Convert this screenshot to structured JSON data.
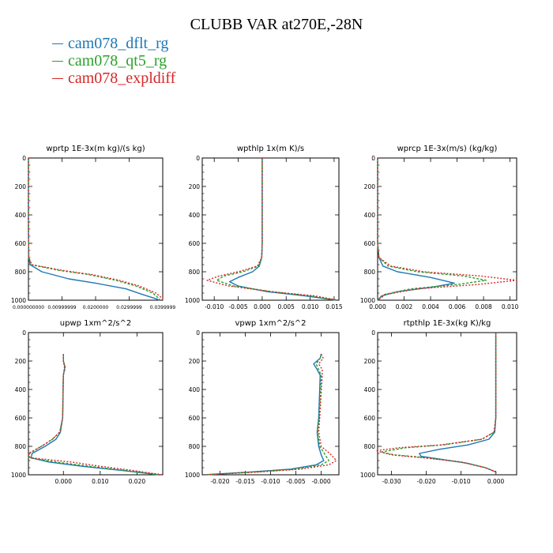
{
  "title": "CLUBB VAR at270E,-28N",
  "legend": [
    {
      "label": "cam078_dflt_rg",
      "color": "#1f77b4"
    },
    {
      "label": "cam078_qt5_rg",
      "color": "#2ca02c"
    },
    {
      "label": "cam078_expldiff",
      "color": "#d62728"
    }
  ],
  "chart_data": [
    {
      "type": "line",
      "title": "wprtp  1E-3x(m kg)/(s kg)",
      "xlim": [
        0,
        0.04
      ],
      "ylim": [
        1000,
        0
      ],
      "xticks": [
        0,
        0.01,
        0.02,
        0.03,
        0.04
      ],
      "xtick_labels": [
        "0.000000000",
        "0.00999999",
        "0.0200000",
        "0.0299999",
        "0.0399999"
      ],
      "yticks": [
        0,
        200,
        400,
        600,
        800,
        1000
      ],
      "series": [
        {
          "name": "cam078_dflt_rg",
          "color": "#1f77b4",
          "dash": "",
          "p": [
            0,
            500,
            700,
            750,
            800,
            850,
            880,
            920,
            960,
            990,
            1000
          ],
          "x": [
            0,
            0,
            0.0001,
            0.0005,
            0.004,
            0.012,
            0.02,
            0.029,
            0.034,
            0.038,
            0.039
          ]
        },
        {
          "name": "cam078_qt5_rg",
          "color": "#2ca02c",
          "dash": "3,2",
          "p": [
            0,
            500,
            700,
            750,
            790,
            820,
            860,
            900,
            950,
            990,
            1000
          ],
          "x": [
            0,
            0,
            0.0001,
            0.0008,
            0.009,
            0.018,
            0.026,
            0.032,
            0.037,
            0.039,
            0.039
          ]
        },
        {
          "name": "cam078_expldiff",
          "color": "#d62728",
          "dash": "2,2",
          "p": [
            0,
            500,
            700,
            750,
            790,
            820,
            860,
            900,
            950,
            990,
            1000
          ],
          "x": [
            0,
            0,
            0.0001,
            0.001,
            0.01,
            0.019,
            0.027,
            0.033,
            0.038,
            0.04,
            0.04
          ]
        }
      ]
    },
    {
      "type": "line",
      "title": "wpthlp  1x(m K)/s",
      "xlim": [
        -0.0125,
        0.016
      ],
      "ylim": [
        1000,
        0
      ],
      "xticks": [
        -0.01,
        -0.005,
        0,
        0.005,
        0.01,
        0.015
      ],
      "xtick_labels": [
        "-0.010",
        "-0.005",
        "0.000",
        "0.005",
        "0.010",
        "0.015"
      ],
      "yticks": [
        0,
        200,
        400,
        600,
        800,
        1000
      ],
      "series": [
        {
          "name": "cam078_dflt_rg",
          "color": "#1f77b4",
          "dash": "",
          "p": [
            0,
            600,
            700,
            760,
            800,
            840,
            870,
            900,
            940,
            970,
            1000
          ],
          "x": [
            0,
            0,
            -0.0001,
            -0.0006,
            -0.002,
            -0.005,
            -0.0068,
            -0.005,
            0.001,
            0.009,
            0.0155
          ]
        },
        {
          "name": "cam078_qt5_rg",
          "color": "#2ca02c",
          "dash": "3,2",
          "p": [
            0,
            600,
            700,
            760,
            800,
            830,
            860,
            900,
            940,
            970,
            1000
          ],
          "x": [
            0,
            0,
            -0.0001,
            -0.0008,
            -0.004,
            -0.008,
            -0.0095,
            -0.006,
            0.002,
            0.01,
            0.0155
          ]
        },
        {
          "name": "cam078_expldiff",
          "color": "#d62728",
          "dash": "2,2",
          "p": [
            0,
            600,
            700,
            760,
            800,
            830,
            860,
            900,
            940,
            970,
            1000
          ],
          "x": [
            0,
            0,
            -0.0001,
            -0.001,
            -0.005,
            -0.009,
            -0.0115,
            -0.007,
            0.002,
            0.011,
            0.0158
          ]
        }
      ]
    },
    {
      "type": "line",
      "title": "wprcp  1E-3x(m/s) (kg/kg)",
      "xlim": [
        0,
        0.0105
      ],
      "ylim": [
        1000,
        0
      ],
      "xticks": [
        0,
        0.002,
        0.004,
        0.006,
        0.008,
        0.01
      ],
      "xtick_labels": [
        "0.000",
        "0.002",
        "0.004",
        "0.006",
        "0.008",
        "0.010"
      ],
      "yticks": [
        0,
        200,
        400,
        600,
        800,
        1000
      ],
      "series": [
        {
          "name": "cam078_dflt_rg",
          "color": "#1f77b4",
          "dash": "",
          "p": [
            0,
            600,
            700,
            760,
            800,
            840,
            880,
            910,
            940,
            970,
            1000
          ],
          "x": [
            0,
            0,
            0.0001,
            0.0004,
            0.0015,
            0.004,
            0.0058,
            0.004,
            0.0015,
            0.0003,
            0
          ]
        },
        {
          "name": "cam078_qt5_rg",
          "color": "#2ca02c",
          "dash": "3,2",
          "p": [
            0,
            600,
            700,
            760,
            800,
            830,
            860,
            890,
            920,
            960,
            1000
          ],
          "x": [
            0,
            0,
            0.0001,
            0.0008,
            0.003,
            0.0065,
            0.0082,
            0.006,
            0.0025,
            0.0005,
            0
          ]
        },
        {
          "name": "cam078_expldiff",
          "color": "#d62728",
          "dash": "2,2",
          "p": [
            0,
            600,
            700,
            760,
            800,
            830,
            860,
            890,
            920,
            960,
            1000
          ],
          "x": [
            0,
            0,
            0.0001,
            0.001,
            0.0035,
            0.0078,
            0.0105,
            0.0075,
            0.003,
            0.0006,
            0
          ]
        }
      ]
    },
    {
      "type": "line",
      "title": "upwp  1xm^2/s^2",
      "xlim": [
        -0.0095,
        0.027
      ],
      "ylim": [
        1000,
        0
      ],
      "xticks": [
        0,
        0.01,
        0.02
      ],
      "xtick_labels": [
        "0.000",
        "0.010",
        "0.020"
      ],
      "yticks": [
        0,
        200,
        400,
        600,
        800,
        1000
      ],
      "series": [
        {
          "name": "cam078_dflt_rg",
          "color": "#1f77b4",
          "dash": "",
          "p": [
            150,
            200,
            240,
            260,
            300,
            600,
            700,
            750,
            800,
            850,
            880,
            910,
            940,
            970,
            1000
          ],
          "x": [
            0,
            0,
            0.0004,
            0.0003,
            0,
            -0.0002,
            -0.0008,
            -0.002,
            -0.005,
            -0.0085,
            -0.0088,
            -0.004,
            0.005,
            0.016,
            0.026
          ]
        },
        {
          "name": "cam078_qt5_rg",
          "color": "#2ca02c",
          "dash": "3,2",
          "p": [
            150,
            200,
            240,
            260,
            300,
            600,
            700,
            750,
            800,
            850,
            880,
            910,
            940,
            970,
            1000
          ],
          "x": [
            0,
            0,
            0.0005,
            0.0004,
            0,
            -0.0002,
            -0.001,
            -0.003,
            -0.006,
            -0.0092,
            -0.0094,
            -0.002,
            0.007,
            0.017,
            0.026
          ]
        },
        {
          "name": "cam078_expldiff",
          "color": "#d62728",
          "dash": "2,2",
          "p": [
            150,
            200,
            240,
            260,
            300,
            600,
            700,
            750,
            800,
            850,
            880,
            910,
            940,
            970,
            1000
          ],
          "x": [
            0,
            0,
            0.0003,
            0.0002,
            0,
            -0.0002,
            -0.001,
            -0.003,
            -0.006,
            -0.0095,
            -0.009,
            0.002,
            0.01,
            0.019,
            0.027
          ]
        }
      ]
    },
    {
      "type": "line",
      "title": "vpwp  1xm^2/s^2",
      "xlim": [
        -0.0235,
        0.0035
      ],
      "ylim": [
        1000,
        0
      ],
      "xticks": [
        -0.02,
        -0.015,
        -0.01,
        -0.005,
        0
      ],
      "xtick_labels": [
        "-0.020",
        "-0.015",
        "-0.010",
        "-0.005",
        "-0.000"
      ],
      "yticks": [
        0,
        200,
        400,
        600,
        800,
        1000
      ],
      "series": [
        {
          "name": "cam078_dflt_rg",
          "color": "#1f77b4",
          "dash": "",
          "p": [
            150,
            180,
            220,
            260,
            300,
            600,
            700,
            800,
            860,
            900,
            930,
            960,
            980,
            1000
          ],
          "x": [
            0,
            -0.0002,
            -0.0015,
            -0.0008,
            -0.0002,
            -0.0005,
            -0.0008,
            -0.0005,
            0,
            0.0005,
            -0.001,
            -0.006,
            -0.014,
            -0.023
          ]
        },
        {
          "name": "cam078_qt5_rg",
          "color": "#2ca02c",
          "dash": "3,2",
          "p": [
            150,
            180,
            220,
            260,
            300,
            600,
            700,
            800,
            860,
            900,
            930,
            960,
            980,
            1000
          ],
          "x": [
            0,
            -0.0002,
            -0.001,
            -0.0005,
            0,
            -0.0004,
            -0.0007,
            -0.0003,
            0.0008,
            0.0015,
            0,
            -0.005,
            -0.013,
            -0.023
          ]
        },
        {
          "name": "cam078_expldiff",
          "color": "#d62728",
          "dash": "2,2",
          "p": [
            150,
            180,
            220,
            260,
            300,
            600,
            700,
            800,
            860,
            900,
            930,
            960,
            980,
            1000
          ],
          "x": [
            0,
            0.0004,
            -0.0005,
            0.0002,
            0.0002,
            -0.0003,
            -0.0005,
            0,
            0.002,
            0.003,
            0.0015,
            -0.004,
            -0.012,
            -0.023
          ]
        }
      ]
    },
    {
      "type": "line",
      "title": "rtpthlp  1E-3x(kg K)/kg",
      "xlim": [
        -0.034,
        0.006
      ],
      "ylim": [
        1000,
        0
      ],
      "xticks": [
        -0.03,
        -0.02,
        -0.01,
        0
      ],
      "xtick_labels": [
        "-0.030",
        "-0.020",
        "-0.010",
        "0.000"
      ],
      "yticks": [
        0,
        200,
        400,
        600,
        800,
        1000
      ],
      "series": [
        {
          "name": "cam078_dflt_rg",
          "color": "#1f77b4",
          "dash": "",
          "p": [
            0,
            600,
            700,
            750,
            790,
            820,
            850,
            870,
            890,
            920,
            950,
            980,
            1000
          ],
          "x": [
            0,
            0,
            -0.0003,
            -0.002,
            -0.008,
            -0.016,
            -0.022,
            -0.0215,
            -0.016,
            -0.008,
            -0.003,
            0,
            0
          ]
        },
        {
          "name": "cam078_qt5_rg",
          "color": "#2ca02c",
          "dash": "3,2",
          "p": [
            0,
            600,
            700,
            750,
            790,
            810,
            840,
            860,
            880,
            910,
            950,
            980,
            1000
          ],
          "x": [
            0,
            0,
            -0.0005,
            -0.004,
            -0.015,
            -0.026,
            -0.033,
            -0.029,
            -0.02,
            -0.01,
            -0.003,
            0,
            0
          ]
        },
        {
          "name": "cam078_expldiff",
          "color": "#d62728",
          "dash": "2,2",
          "p": [
            0,
            600,
            700,
            750,
            790,
            810,
            830,
            860,
            880,
            910,
            950,
            980,
            1000
          ],
          "x": [
            0,
            0,
            -0.0005,
            -0.004,
            -0.016,
            -0.028,
            -0.0345,
            -0.03,
            -0.021,
            -0.01,
            -0.003,
            0,
            0
          ]
        }
      ]
    }
  ]
}
